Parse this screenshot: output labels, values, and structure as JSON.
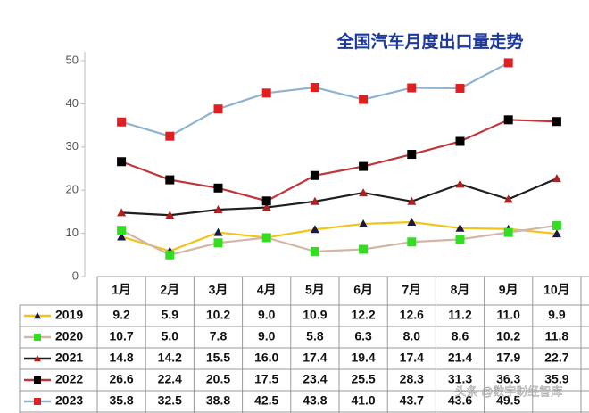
{
  "chart_data": {
    "type": "line",
    "title": "全国汽车月度出口量走势",
    "categories": [
      "1月",
      "2月",
      "3月",
      "4月",
      "5月",
      "6月",
      "7月",
      "8月",
      "9月",
      "10月"
    ],
    "ylim": [
      0,
      50
    ],
    "yticks": [
      0,
      10,
      20,
      30,
      40,
      50
    ],
    "watermark": "头条 @数字财经智库",
    "series": [
      {
        "name": "2019",
        "color": "#f0c419",
        "marker_color": "#1a1a40",
        "marker": "triangle",
        "values": [
          9.2,
          5.9,
          10.2,
          9.0,
          10.9,
          12.2,
          12.6,
          11.2,
          11.0,
          9.9
        ],
        "value_labels": [
          "9.2",
          "5.9",
          "10.2",
          "9.0",
          "10.9",
          "12.2",
          "12.6",
          "11.2",
          "11.0",
          "9.9"
        ]
      },
      {
        "name": "2020",
        "color": "#d2b6a6",
        "marker_color": "#33dd22",
        "marker": "square",
        "values": [
          10.7,
          5.0,
          7.8,
          9.0,
          5.8,
          6.3,
          8.0,
          8.6,
          10.2,
          11.8
        ],
        "value_labels": [
          "10.7",
          "5.0",
          "7.8",
          "9.0",
          "5.8",
          "6.3",
          "8.0",
          "8.6",
          "10.2",
          "11.8"
        ]
      },
      {
        "name": "2021",
        "color": "#1e1e1e",
        "marker_color": "#b02020",
        "marker": "triangle",
        "values": [
          14.8,
          14.2,
          15.5,
          16.0,
          17.4,
          19.4,
          17.4,
          21.4,
          17.9,
          22.7
        ],
        "value_labels": [
          "14.8",
          "14.2",
          "15.5",
          "16.0",
          "17.4",
          "19.4",
          "17.4",
          "21.4",
          "17.9",
          "22.7"
        ]
      },
      {
        "name": "2022",
        "color": "#c0343a",
        "marker_color": "#000000",
        "marker": "square",
        "values": [
          26.6,
          22.4,
          20.5,
          17.5,
          23.4,
          25.5,
          28.3,
          31.3,
          36.3,
          35.9
        ],
        "value_labels": [
          "26.6",
          "22.4",
          "20.5",
          "17.5",
          "23.4",
          "25.5",
          "28.3",
          "31.3",
          "36.3",
          "35.9"
        ]
      },
      {
        "name": "2023",
        "color": "#8fb3cf",
        "marker_color": "#e02020",
        "marker": "square",
        "values": [
          35.8,
          32.5,
          38.8,
          42.5,
          43.8,
          41.0,
          43.7,
          43.6,
          49.5,
          null
        ],
        "value_labels": [
          "35.8",
          "32.5",
          "38.8",
          "42.5",
          "43.8",
          "41.0",
          "43.7",
          "43.6",
          "49.5",
          null
        ]
      }
    ]
  }
}
